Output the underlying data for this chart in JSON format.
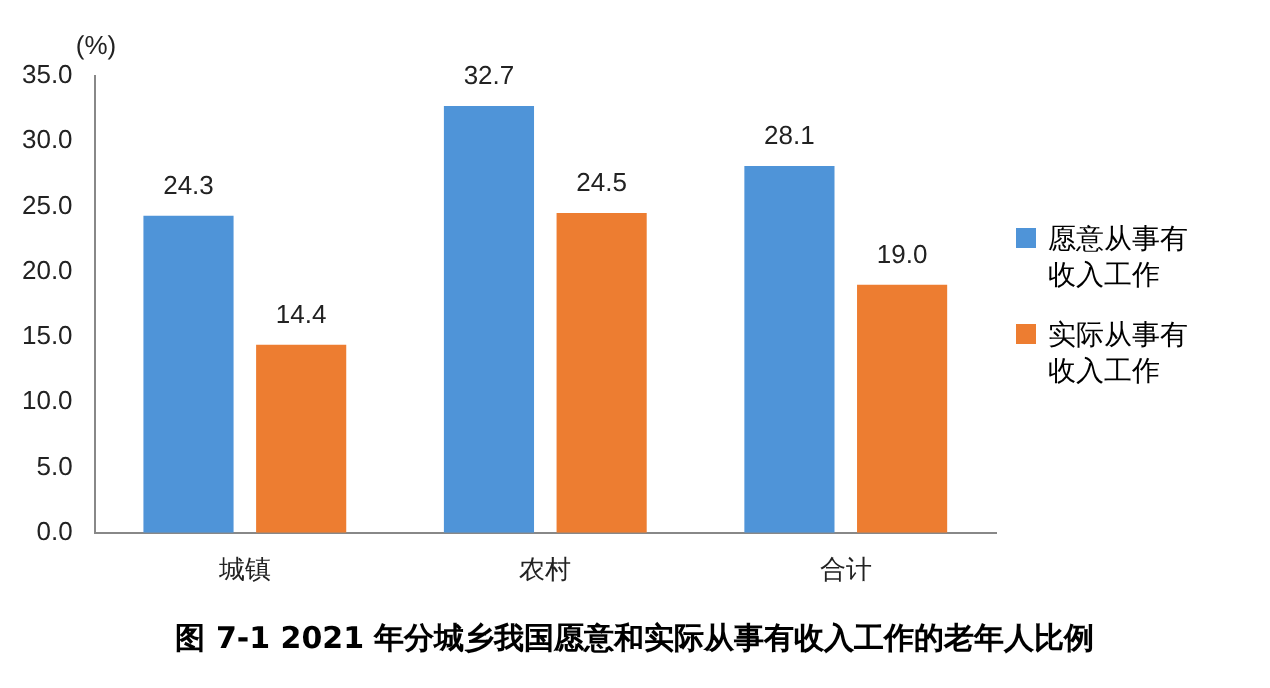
{
  "chart_data": {
    "type": "bar",
    "title": "图 7-1 2021 年分城乡我国愿意和实际从事有收入工作的老年人比例",
    "ylabel": "(%)",
    "categories": [
      "城镇",
      "农村",
      "合计"
    ],
    "series": [
      {
        "name": "愿意从事有收入工作",
        "color": "#4f94d8",
        "values": [
          24.3,
          32.7,
          28.1
        ],
        "value_labels": [
          "24.3",
          "32.7",
          "28.1"
        ]
      },
      {
        "name": "实际从事有收入工作",
        "color": "#ed7d31",
        "values": [
          14.4,
          24.5,
          19.0
        ],
        "value_labels": [
          "14.4",
          "24.5",
          "19.0"
        ]
      }
    ],
    "ylim": [
      0,
      35
    ],
    "yticks": [
      {
        "value": 0,
        "label": "0.0"
      },
      {
        "value": 5,
        "label": "5.0"
      },
      {
        "value": 10,
        "label": "10.0"
      },
      {
        "value": 15,
        "label": "15.0"
      },
      {
        "value": 20,
        "label": "20.0"
      },
      {
        "value": 25,
        "label": "25.0"
      },
      {
        "value": 30,
        "label": "30.0"
      },
      {
        "value": 35,
        "label": "35.0"
      }
    ],
    "grid": false,
    "legend": "right"
  }
}
